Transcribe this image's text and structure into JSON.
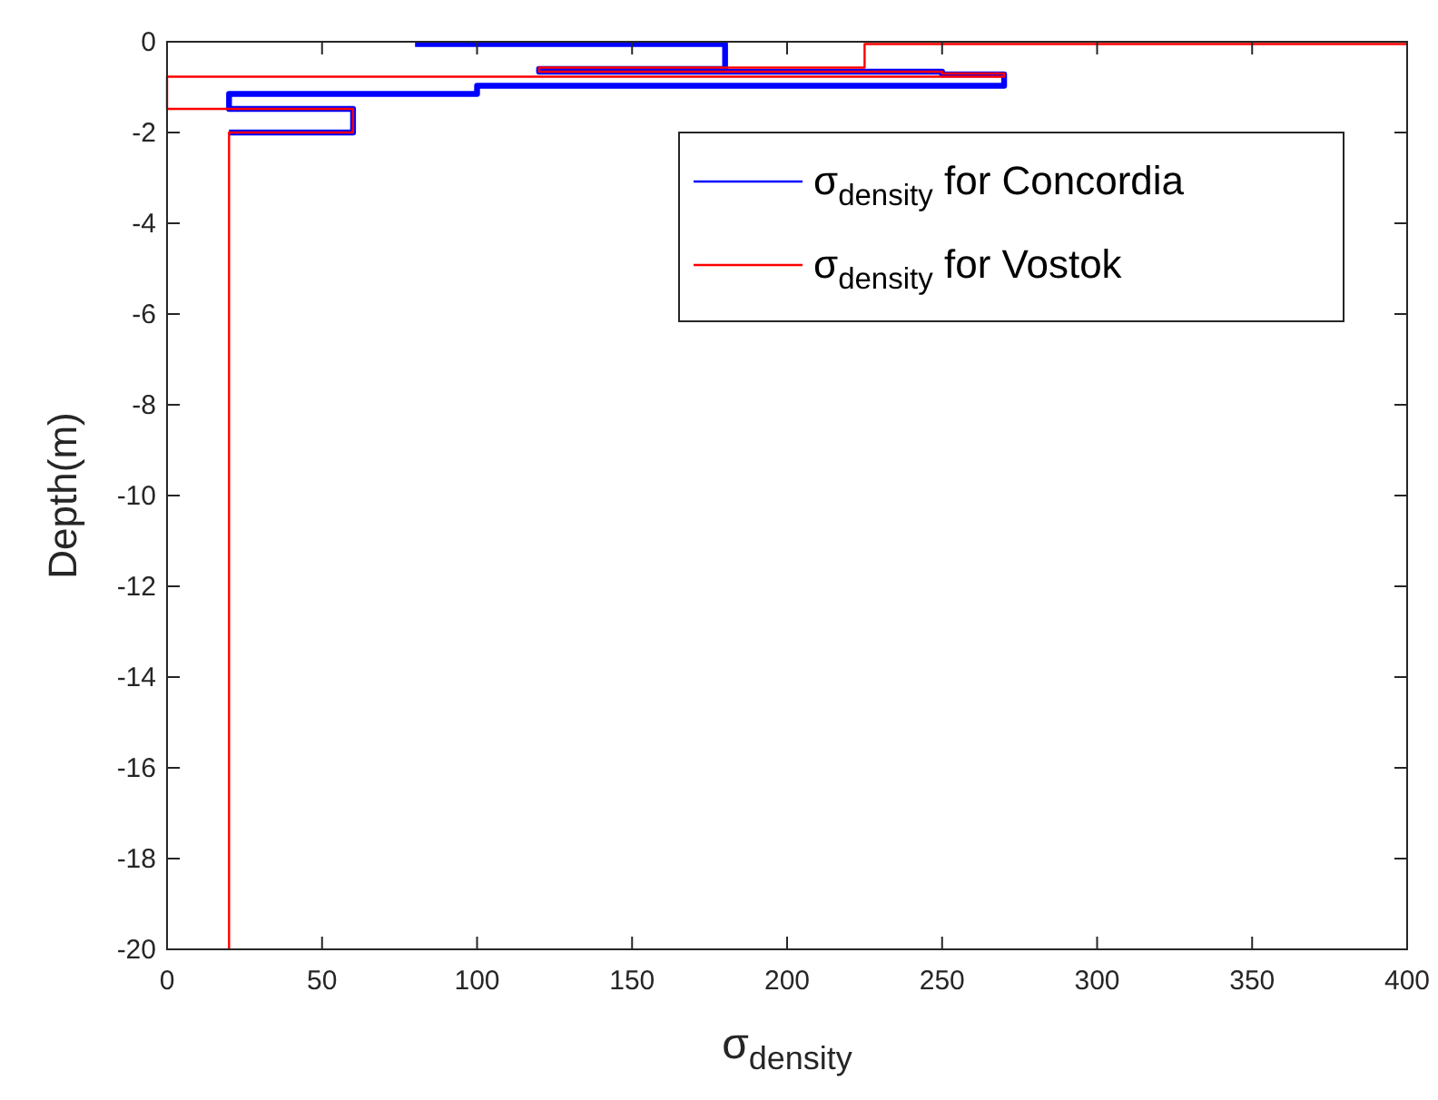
{
  "chart_data": {
    "type": "line",
    "xlabel": "σ$_{density}$",
    "ylabel": "Depth(m)",
    "xlim": [
      0,
      400
    ],
    "xticks": [
      0,
      50,
      100,
      150,
      200,
      250,
      300,
      350,
      400
    ],
    "ylim": [
      -20,
      0
    ],
    "yticks": [
      -20,
      -18,
      -16,
      -14,
      -12,
      -10,
      -8,
      -6,
      -4,
      -2,
      0
    ],
    "grid": false,
    "legend": "top right",
    "marker": "none",
    "line_style": "solid",
    "series": [
      {
        "name": "σ$_{density}$ for Concordia",
        "color": "#0000ff",
        "x": [
          80,
          180,
          180,
          120,
          120,
          250,
          250,
          270,
          270,
          100,
          100,
          20,
          20,
          60,
          60,
          20
        ],
        "values": [
          -0.05,
          -0.05,
          -0.6,
          -0.6,
          -0.66,
          -0.66,
          -0.72,
          -0.72,
          -0.97,
          -0.97,
          -1.15,
          -1.15,
          -1.48,
          -1.48,
          -2.0,
          -2.0
        ]
      },
      {
        "name": "σ$_{density}$ for Vostok",
        "color": "#ff0000",
        "x": [
          400,
          225,
          225,
          120,
          120,
          250,
          250,
          270,
          270,
          0,
          0,
          60,
          60,
          20,
          20
        ],
        "values": [
          -0.05,
          -0.05,
          -0.57,
          -0.57,
          -0.66,
          -0.66,
          -0.7,
          -0.7,
          -0.77,
          -0.77,
          -1.48,
          -1.48,
          -2.0,
          -2.0,
          -20
        ]
      }
    ]
  }
}
